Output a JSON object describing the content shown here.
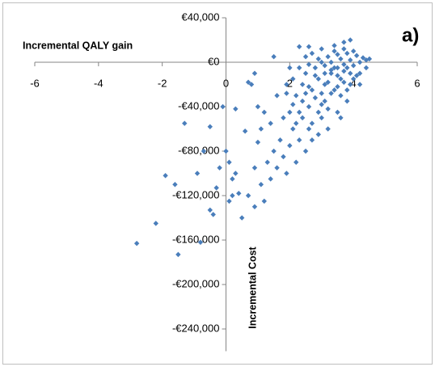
{
  "chart_data": {
    "type": "scatter",
    "annotation": "a)",
    "x_label": "Incremental QALY gain",
    "y_label": "Incremental Cost",
    "color": "#4a7ebb",
    "xlim": [
      -6,
      6
    ],
    "xticks": [
      -6,
      -4,
      -2,
      0,
      2,
      4,
      6
    ],
    "ylim": [
      -260000,
      40000
    ],
    "yticks": [
      {
        "value": 40000,
        "label": "€40,000"
      },
      {
        "value": 0,
        "label": "€0"
      },
      {
        "value": -40000,
        "label": "-€40,000"
      },
      {
        "value": -80000,
        "label": "-€80,000"
      },
      {
        "value": -120000,
        "label": "-€120,000"
      },
      {
        "value": -160000,
        "label": "-€160,000"
      },
      {
        "value": -200000,
        "label": "-€200,000"
      },
      {
        "value": -240000,
        "label": "-€240,000"
      }
    ],
    "x": [
      -2.8,
      -2.2,
      -1.5,
      -0.8,
      -1.9,
      -1.6,
      -1.3,
      -0.9,
      -0.7,
      -0.5,
      -0.4,
      -0.3,
      -0.2,
      -0.5,
      -0.1,
      0.0,
      0.1,
      0.2,
      0.3,
      0.1,
      0.4,
      0.5,
      0.3,
      0.6,
      0.8,
      0.9,
      0.2,
      0.7,
      0.9,
      1.1,
      1.2,
      1.0,
      1.3,
      1.4,
      1.5,
      1.6,
      1.7,
      1.2,
      1.4,
      1.0,
      0.7,
      0.9,
      1.1,
      1.8,
      2.0,
      1.9,
      2.2,
      1.6,
      1.8,
      2.1,
      2.3,
      2.5,
      2.6,
      1.5,
      1.9,
      2.0,
      2.2,
      2.4,
      2.5,
      2.6,
      2.7,
      2.8,
      2.9,
      3.0,
      3.1,
      3.2,
      3.3,
      3.4,
      3.5,
      3.6,
      3.7,
      3.8,
      3.9,
      4.0,
      4.1,
      4.2,
      4.3,
      4.4,
      4.5,
      3.9,
      3.7,
      3.4,
      3.0,
      2.6,
      2.3,
      2.9,
      3.1,
      3.3,
      3.5,
      3.7,
      2.4,
      2.2,
      2.0,
      2.7,
      3.0,
      3.2,
      3.6,
      3.8,
      4.0,
      4.2,
      2.1,
      2.3,
      2.5,
      2.7,
      2.9,
      3.1,
      3.3,
      3.5,
      3.7,
      3.9,
      4.1,
      2.8,
      2.6,
      2.4,
      3.2,
      3.4,
      3.6,
      3.8,
      3.0,
      2.5,
      2.8,
      3.3,
      3.5,
      3.7,
      4.0,
      3.2,
      3.5,
      2.9,
      3.8,
      4.2,
      2.1,
      1.9,
      2.3,
      3.6,
      4.4,
      2.7,
      3.1,
      3.4,
      3.0,
      2.6,
      3.9
    ],
    "values": [
      -163000,
      -145000,
      -173000,
      -162000,
      -102000,
      -110000,
      -55000,
      -100000,
      -80000,
      -133000,
      -137000,
      -113000,
      -95000,
      -58000,
      -40000,
      -80000,
      -90000,
      -105000,
      -100000,
      -125000,
      -118000,
      -140000,
      -42000,
      -62000,
      -20000,
      -95000,
      -120000,
      -120000,
      -130000,
      -110000,
      -125000,
      -72000,
      -90000,
      -105000,
      -80000,
      -95000,
      -70000,
      -45000,
      -55000,
      -40000,
      -18000,
      -10000,
      -60000,
      -85000,
      -75000,
      -100000,
      -90000,
      -30000,
      -50000,
      -60000,
      -70000,
      -80000,
      -60000,
      5000,
      -20000,
      -5000,
      -30000,
      -20000,
      -10000,
      -40000,
      -25000,
      -5000,
      -15000,
      0,
      -20000,
      5000,
      -10000,
      10000,
      -5000,
      3000,
      -8000,
      8000,
      2000,
      -3000,
      6000,
      0,
      4000,
      2000,
      3000,
      20000,
      18000,
      15000,
      12000,
      14000,
      14000,
      -45000,
      -35000,
      -28000,
      -22000,
      -18000,
      -50000,
      -55000,
      -45000,
      -55000,
      -50000,
      -42000,
      -30000,
      -25000,
      -15000,
      -10000,
      -15000,
      -5000,
      5000,
      8000,
      3000,
      -3000,
      -7000,
      -12000,
      -2000,
      -10000,
      -12000,
      -32000,
      -22000,
      -35000,
      -18000,
      -25000,
      -15000,
      -5000,
      -28000,
      -28000,
      -12000,
      0,
      7000,
      12000,
      10000,
      -60000,
      -45000,
      -65000,
      -35000,
      -20000,
      -38000,
      -28000,
      -45000,
      -50000,
      -5000,
      -70000,
      -10000,
      -5000,
      -38000,
      -2000,
      -20000
    ]
  }
}
